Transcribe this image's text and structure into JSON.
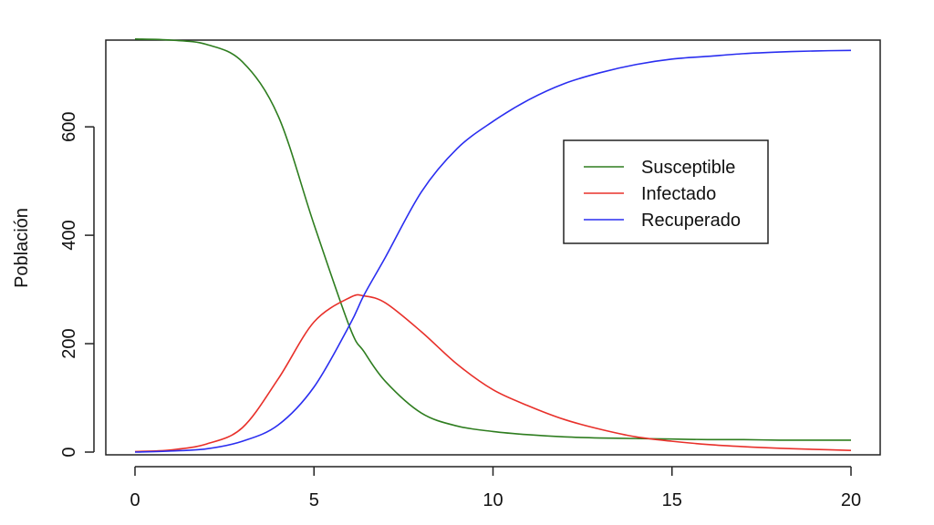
{
  "chart_data": {
    "type": "line",
    "title": "",
    "xlabel": "",
    "ylabel": "Población",
    "xlim": [
      0,
      20
    ],
    "ylim": [
      0,
      760
    ],
    "xticks": [
      0,
      5,
      10,
      15,
      20
    ],
    "yticks": [
      0,
      200,
      400,
      600
    ],
    "xtick_labels": [
      "0",
      "5",
      "10",
      "15",
      "20"
    ],
    "ytick_labels": [
      "0",
      "200",
      "400",
      "600"
    ],
    "grid": false,
    "legend_position": "top-right",
    "x": [
      0,
      1,
      2,
      3,
      4,
      5,
      6,
      6.4,
      7,
      8,
      9,
      10,
      11,
      12,
      13,
      14,
      15,
      16,
      17,
      18,
      19,
      20
    ],
    "series": [
      {
        "name": "Susceptible",
        "color": "#2e7d1f",
        "values": [
          762,
          760,
          752,
          720,
          620,
          420,
          230,
          185,
          130,
          72,
          48,
          38,
          32,
          28,
          26,
          25,
          24,
          23,
          23,
          22,
          22,
          22
        ]
      },
      {
        "name": "Infectado",
        "color": "#e8302a",
        "values": [
          1,
          4,
          15,
          45,
          135,
          240,
          285,
          288,
          275,
          222,
          162,
          115,
          85,
          60,
          42,
          28,
          20,
          14,
          10,
          7,
          5,
          3
        ]
      },
      {
        "name": "Recuperado",
        "color": "#2a2ef0",
        "values": [
          0,
          2,
          6,
          20,
          50,
          120,
          235,
          290,
          360,
          480,
          560,
          610,
          650,
          680,
          700,
          715,
          725,
          730,
          735,
          738,
          740,
          741
        ]
      }
    ]
  }
}
